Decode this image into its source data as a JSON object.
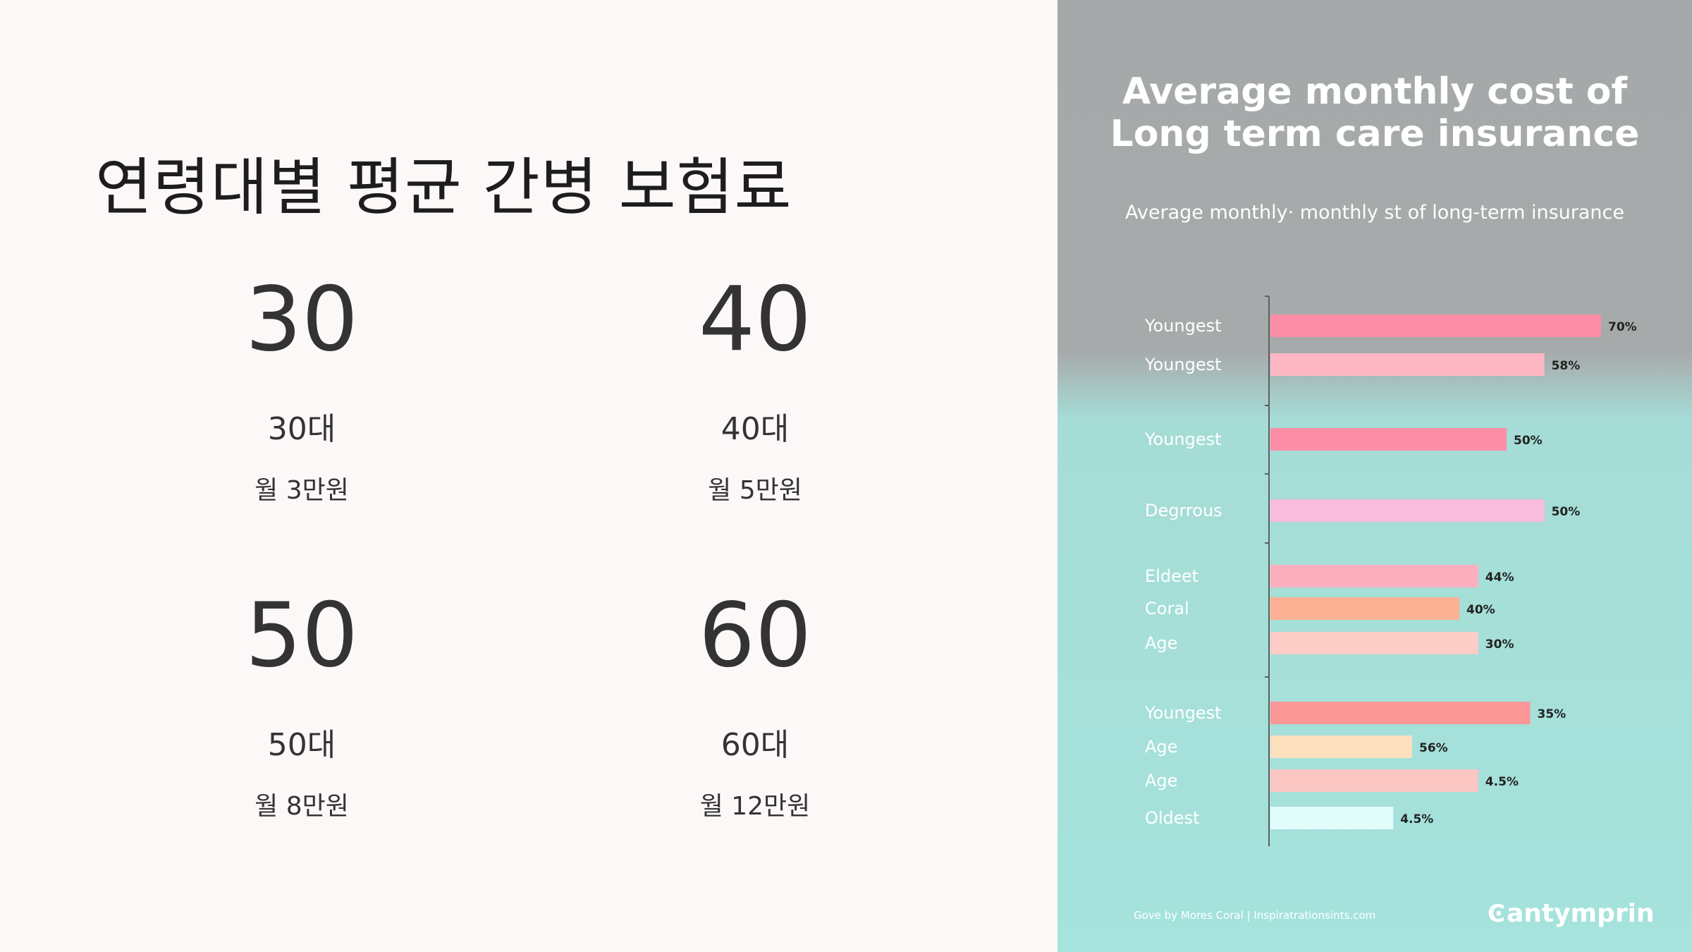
{
  "left": {
    "title": "연령대별 평균 간병 보험료",
    "stats": [
      {
        "big": "30",
        "decade": "30대",
        "cost": "월 3만원"
      },
      {
        "big": "40",
        "decade": "40대",
        "cost": "월 5만원"
      },
      {
        "big": "50",
        "decade": "50대",
        "cost": "월 8만원"
      },
      {
        "big": "60",
        "decade": "60대",
        "cost": "월 12만원"
      }
    ]
  },
  "right": {
    "title_line1": "Average monthly cost of",
    "title_line2": "Long term care insurance",
    "subtitle": "Average monthly· monthly st of long-term insurance",
    "footer": "Gove by Mores Coral | Inspiratrationsints.com",
    "brand": "antymprin",
    "brand_icon": "C-logo-icon"
  },
  "chart_data": {
    "type": "bar",
    "orientation": "horizontal",
    "categories": [
      "Youngest",
      "Youngest",
      "Youngest",
      "Degrrous",
      "Eldeet",
      "Coral",
      "Age",
      "Youngest",
      "Age",
      "Age",
      "Oldest"
    ],
    "values": [
      70,
      58,
      50,
      50,
      44,
      40,
      30,
      35,
      56,
      4.5,
      4.5
    ],
    "value_labels": [
      "70%",
      "58%",
      "50%",
      "50%",
      "44%",
      "40%",
      "30%",
      "35%",
      "56%",
      "4.5%",
      "4.5%"
    ],
    "bar_lengths": [
      70,
      58,
      50,
      58,
      44,
      40,
      44,
      55,
      30,
      44,
      26
    ],
    "colors": [
      "#fb8ea6",
      "#fcb7c3",
      "#fb8ea6",
      "#f9bddc",
      "#fbafbe",
      "#fbb094",
      "#fcccc6",
      "#fb9697",
      "#fde0bd",
      "#fcc6c3",
      "#e2fcfc"
    ],
    "groups": [
      [
        0,
        1
      ],
      [
        2
      ],
      [
        3
      ],
      [
        4,
        5,
        6
      ],
      [
        7,
        8,
        9,
        10
      ]
    ],
    "title": "Average monthly cost of Long term care insurance",
    "grid": false,
    "legend": "none"
  }
}
